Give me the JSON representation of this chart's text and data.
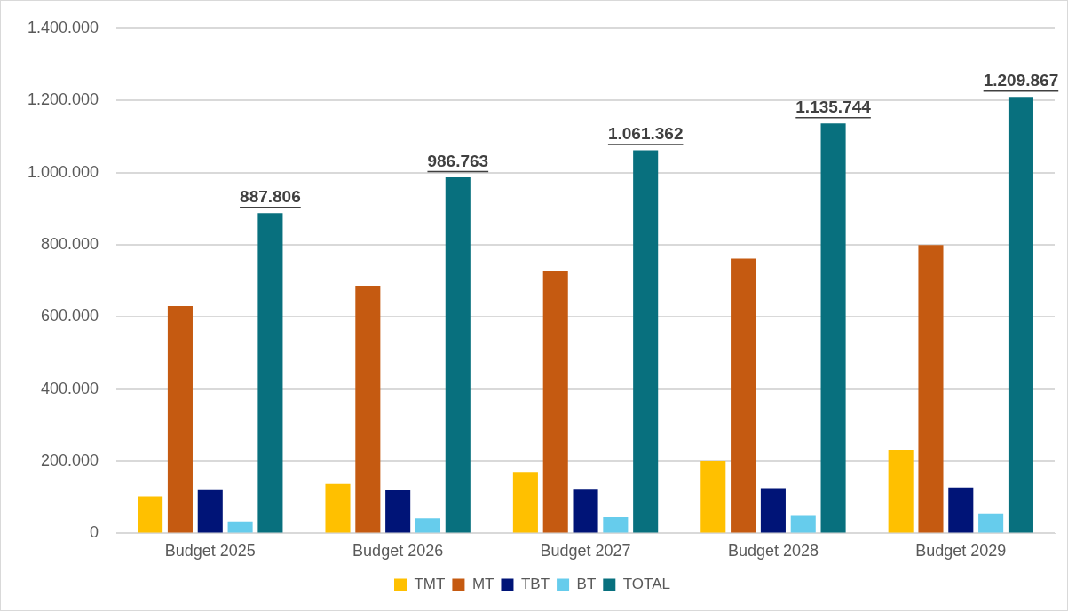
{
  "chart_data": {
    "type": "bar",
    "categories": [
      "Budget 2025",
      "Budget 2026",
      "Budget 2027",
      "Budget 2028",
      "Budget 2029"
    ],
    "series": [
      {
        "name": "TMT",
        "color": "#ffc000",
        "values": [
          103000,
          137000,
          170000,
          200000,
          232000
        ]
      },
      {
        "name": "MT",
        "color": "#c55a11",
        "values": [
          630000,
          687000,
          726000,
          762000,
          799000
        ]
      },
      {
        "name": "TBT",
        "color": "#001477",
        "values": [
          122000,
          121000,
          123000,
          125000,
          127000
        ]
      },
      {
        "name": "BT",
        "color": "#66ccec",
        "values": [
          31000,
          42000,
          45000,
          49000,
          53000
        ]
      },
      {
        "name": "TOTAL",
        "color": "#08707e",
        "values": [
          887806,
          986763,
          1061362,
          1135744,
          1209867
        ],
        "value_labels": [
          "887.806",
          "986.763",
          "1.061.362",
          "1.135.744",
          "1.209.867"
        ]
      }
    ],
    "ylim": [
      0,
      1400000
    ],
    "yticks": [
      {
        "value": 0,
        "label": "0"
      },
      {
        "value": 200000,
        "label": "200.000"
      },
      {
        "value": 400000,
        "label": "400.000"
      },
      {
        "value": 600000,
        "label": "600.000"
      },
      {
        "value": 800000,
        "label": "800.000"
      },
      {
        "value": 1000000,
        "label": "1.000.000"
      },
      {
        "value": 1200000,
        "label": "1.200.000"
      },
      {
        "value": 1400000,
        "label": "1.400.000"
      }
    ],
    "grid": "y",
    "legend": "bottom"
  }
}
